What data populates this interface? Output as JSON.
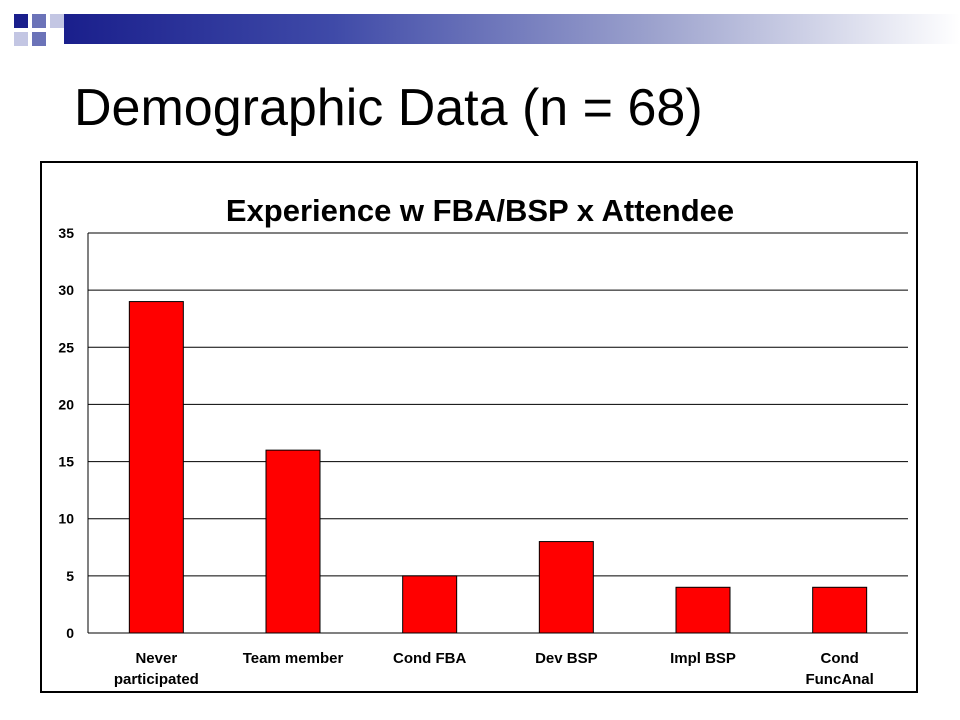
{
  "slide": {
    "title": "Demographic Data (n = 68)",
    "accent_colors": {
      "dark_blue": "#1a1f8c",
      "mid_blue": "#6b73b8",
      "light_blue": "#c3c6e3"
    }
  },
  "chart_data": {
    "type": "bar",
    "title": "Experience w FBA/BSP x Attendee",
    "categories": [
      [
        "Never",
        "participated"
      ],
      [
        "Team member"
      ],
      [
        "Cond FBA"
      ],
      [
        "Dev BSP"
      ],
      [
        "Impl BSP"
      ],
      [
        "Cond",
        "FuncAnal"
      ]
    ],
    "values": [
      29,
      16,
      5,
      8,
      4,
      4
    ],
    "yticks": [
      "0",
      "5",
      "10",
      "15",
      "20",
      "25",
      "30",
      "35"
    ],
    "ylim": [
      0,
      35
    ],
    "grid": true,
    "legend": "none",
    "bar_color": "#ff0000",
    "bar_edge_color": "#000000",
    "xlabel": "",
    "ylabel": ""
  }
}
